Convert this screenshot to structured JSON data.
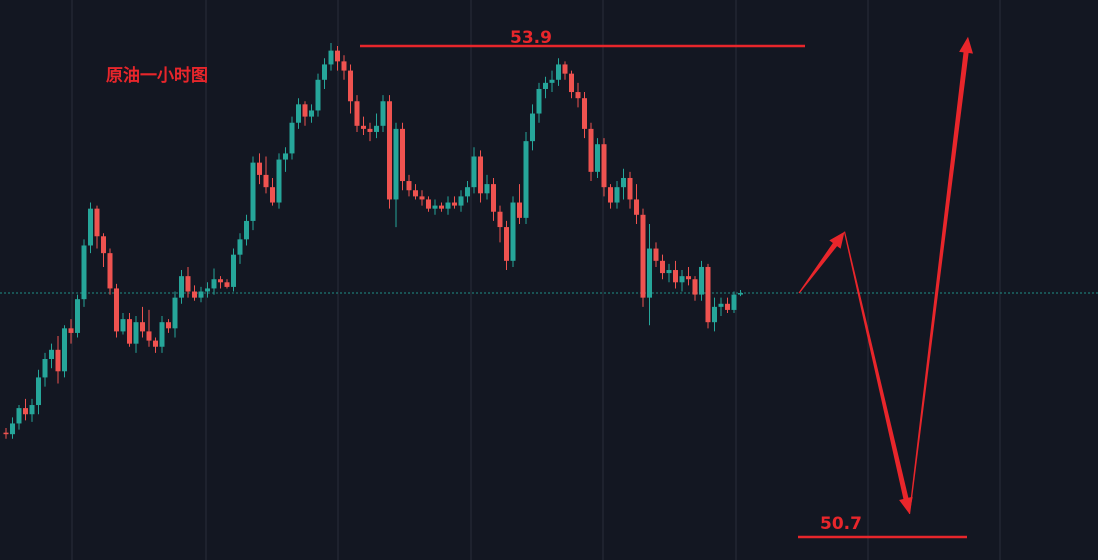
{
  "title": "原油一小时图",
  "resistance_label": "53.9",
  "support_label": "50.7",
  "colors": {
    "background": "#131722",
    "grid": "#2a2e39",
    "up": "#26a69a",
    "down": "#ef5350",
    "annotation": "#e8262b",
    "current_price_line": "#1f8f87"
  },
  "chart_data": {
    "type": "candlestick",
    "y_min": 50.55,
    "y_max": 54.2,
    "current_price": 52.29,
    "resistance": 53.9,
    "support": 50.7,
    "candles": [
      [
        51.38,
        51.41,
        51.34,
        51.37
      ],
      [
        51.37,
        51.48,
        51.34,
        51.44
      ],
      [
        51.44,
        51.56,
        51.4,
        51.54
      ],
      [
        51.54,
        51.6,
        51.46,
        51.5
      ],
      [
        51.5,
        51.6,
        51.45,
        51.56
      ],
      [
        51.56,
        51.79,
        51.5,
        51.74
      ],
      [
        51.74,
        51.9,
        51.68,
        51.86
      ],
      [
        51.86,
        51.96,
        51.8,
        51.92
      ],
      [
        51.92,
        52.01,
        51.7,
        51.78
      ],
      [
        51.78,
        52.08,
        51.74,
        52.06
      ],
      [
        52.06,
        52.12,
        51.96,
        52.03
      ],
      [
        52.03,
        52.28,
        52.0,
        52.25
      ],
      [
        52.25,
        52.64,
        52.2,
        52.6
      ],
      [
        52.6,
        52.88,
        52.55,
        52.84
      ],
      [
        52.84,
        52.86,
        52.58,
        52.66
      ],
      [
        52.66,
        52.68,
        52.46,
        52.55
      ],
      [
        52.55,
        52.58,
        52.28,
        52.32
      ],
      [
        52.32,
        52.35,
        52.0,
        52.04
      ],
      [
        52.04,
        52.16,
        52.02,
        52.12
      ],
      [
        52.12,
        52.16,
        51.94,
        51.96
      ],
      [
        51.96,
        52.14,
        51.9,
        52.1
      ],
      [
        52.1,
        52.2,
        52.0,
        52.04
      ],
      [
        52.04,
        52.18,
        51.94,
        51.98
      ],
      [
        51.98,
        52.0,
        51.9,
        51.94
      ],
      [
        51.94,
        52.14,
        51.9,
        52.1
      ],
      [
        52.1,
        52.12,
        52.03,
        52.06
      ],
      [
        52.06,
        52.3,
        52.0,
        52.26
      ],
      [
        52.26,
        52.44,
        52.22,
        52.4
      ],
      [
        52.4,
        52.46,
        52.26,
        52.3
      ],
      [
        52.3,
        52.34,
        52.24,
        52.26
      ],
      [
        52.26,
        52.33,
        52.23,
        52.3
      ],
      [
        52.3,
        52.36,
        52.26,
        52.32
      ],
      [
        52.32,
        52.45,
        52.28,
        52.38
      ],
      [
        52.38,
        52.4,
        52.32,
        52.36
      ],
      [
        52.36,
        52.38,
        52.32,
        52.33
      ],
      [
        52.33,
        52.58,
        52.3,
        52.54
      ],
      [
        52.54,
        52.68,
        52.48,
        52.64
      ],
      [
        52.64,
        52.8,
        52.6,
        52.76
      ],
      [
        52.76,
        53.18,
        52.7,
        53.14
      ],
      [
        53.14,
        53.2,
        53.0,
        53.06
      ],
      [
        53.06,
        53.18,
        52.94,
        52.98
      ],
      [
        52.98,
        53.04,
        52.86,
        52.88
      ],
      [
        52.88,
        53.2,
        52.84,
        53.16
      ],
      [
        53.16,
        53.24,
        53.08,
        53.2
      ],
      [
        53.2,
        53.44,
        53.16,
        53.4
      ],
      [
        53.4,
        53.56,
        53.36,
        53.52
      ],
      [
        53.52,
        53.54,
        53.38,
        53.44
      ],
      [
        53.44,
        53.52,
        53.4,
        53.48
      ],
      [
        53.48,
        53.72,
        53.44,
        53.68
      ],
      [
        53.68,
        53.82,
        53.62,
        53.78
      ],
      [
        53.78,
        53.92,
        53.74,
        53.87
      ],
      [
        53.87,
        53.9,
        53.74,
        53.8
      ],
      [
        53.8,
        53.84,
        53.68,
        53.74
      ],
      [
        53.74,
        53.78,
        53.46,
        53.54
      ],
      [
        53.54,
        53.58,
        53.34,
        53.38
      ],
      [
        53.38,
        53.44,
        53.32,
        53.36
      ],
      [
        53.36,
        53.4,
        53.28,
        53.34
      ],
      [
        53.34,
        53.46,
        53.3,
        53.38
      ],
      [
        53.38,
        53.58,
        53.34,
        53.54
      ],
      [
        53.54,
        53.58,
        52.84,
        52.9
      ],
      [
        52.9,
        53.4,
        52.72,
        53.36
      ],
      [
        53.36,
        53.4,
        52.96,
        53.02
      ],
      [
        53.02,
        53.06,
        52.92,
        52.96
      ],
      [
        52.96,
        53.0,
        52.9,
        52.92
      ],
      [
        52.92,
        52.96,
        52.86,
        52.9
      ],
      [
        52.9,
        52.92,
        52.82,
        52.84
      ],
      [
        52.84,
        52.9,
        52.8,
        52.86
      ],
      [
        52.86,
        52.88,
        52.82,
        52.84
      ],
      [
        52.84,
        52.92,
        52.8,
        52.88
      ],
      [
        52.88,
        52.92,
        52.84,
        52.86
      ],
      [
        52.86,
        52.96,
        52.82,
        52.92
      ],
      [
        52.92,
        53.02,
        52.88,
        52.98
      ],
      [
        52.98,
        53.24,
        52.94,
        53.18
      ],
      [
        53.18,
        53.22,
        52.88,
        52.94
      ],
      [
        52.94,
        53.06,
        52.9,
        53.0
      ],
      [
        53.0,
        53.04,
        52.76,
        52.82
      ],
      [
        52.82,
        52.86,
        52.62,
        52.72
      ],
      [
        52.72,
        52.76,
        52.44,
        52.5
      ],
      [
        52.5,
        52.92,
        52.46,
        52.88
      ],
      [
        52.88,
        53.0,
        52.74,
        52.78
      ],
      [
        52.78,
        53.34,
        52.74,
        53.28
      ],
      [
        53.28,
        53.52,
        53.22,
        53.46
      ],
      [
        53.46,
        53.66,
        53.4,
        53.62
      ],
      [
        53.62,
        53.7,
        53.56,
        53.66
      ],
      [
        53.66,
        53.74,
        53.6,
        53.68
      ],
      [
        53.68,
        53.82,
        53.64,
        53.78
      ],
      [
        53.78,
        53.8,
        53.68,
        53.72
      ],
      [
        53.72,
        53.74,
        53.56,
        53.6
      ],
      [
        53.6,
        53.66,
        53.5,
        53.56
      ],
      [
        53.56,
        53.6,
        53.3,
        53.36
      ],
      [
        53.36,
        53.4,
        53.02,
        53.08
      ],
      [
        53.08,
        53.3,
        53.04,
        53.26
      ],
      [
        53.26,
        53.3,
        52.92,
        52.98
      ],
      [
        52.98,
        53.0,
        52.84,
        52.88
      ],
      [
        52.88,
        53.02,
        52.84,
        52.98
      ],
      [
        52.98,
        53.1,
        52.9,
        53.04
      ],
      [
        53.04,
        53.08,
        52.84,
        52.9
      ],
      [
        52.9,
        53.0,
        52.74,
        52.8
      ],
      [
        52.8,
        52.84,
        52.2,
        52.26
      ],
      [
        52.26,
        52.74,
        52.08,
        52.58
      ],
      [
        52.58,
        52.62,
        52.46,
        52.5
      ],
      [
        52.5,
        52.54,
        52.38,
        52.42
      ],
      [
        52.42,
        52.48,
        52.36,
        52.44
      ],
      [
        52.44,
        52.5,
        52.32,
        52.36
      ],
      [
        52.36,
        52.44,
        52.3,
        52.4
      ],
      [
        52.4,
        52.46,
        52.34,
        52.38
      ],
      [
        52.38,
        52.4,
        52.24,
        52.28
      ],
      [
        52.28,
        52.5,
        52.24,
        52.46
      ],
      [
        52.46,
        52.48,
        52.06,
        52.1
      ],
      [
        52.1,
        52.26,
        52.04,
        52.2
      ],
      [
        52.2,
        52.26,
        52.14,
        52.22
      ],
      [
        52.22,
        52.26,
        52.16,
        52.18
      ],
      [
        52.18,
        52.3,
        52.16,
        52.28
      ],
      [
        52.28,
        52.31,
        52.27,
        52.29
      ]
    ],
    "forecast_path": [
      [
        122,
        52.29
      ],
      [
        129,
        52.69
      ],
      [
        139,
        50.85
      ],
      [
        148,
        53.96
      ]
    ]
  }
}
